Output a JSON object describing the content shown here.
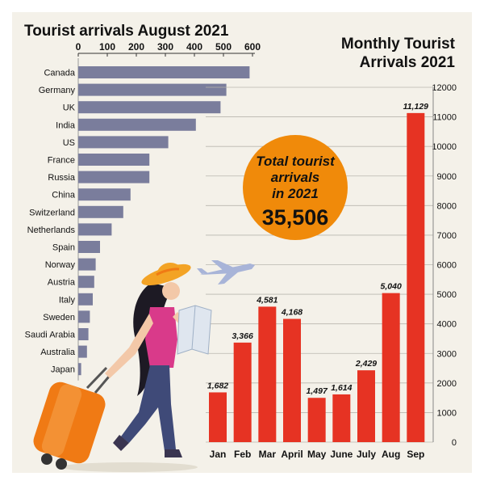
{
  "chart_data": [
    {
      "type": "bar",
      "orientation": "horizontal",
      "title": "Tourist arrivals August 2021",
      "categories": [
        "Canada",
        "Germany",
        "UK",
        "India",
        "US",
        "France",
        "Russia",
        "China",
        "Switzerland",
        "Netherlands",
        "Spain",
        "Norway",
        "Austria",
        "Italy",
        "Sweden",
        "Saudi Arabia",
        "Australia",
        "Japan"
      ],
      "values": [
        590,
        510,
        490,
        405,
        310,
        245,
        245,
        180,
        155,
        115,
        75,
        60,
        55,
        50,
        40,
        35,
        30,
        10
      ],
      "xticks": [
        "0",
        "100",
        "200",
        "300",
        "400",
        "500",
        "600"
      ],
      "xlim": [
        0,
        600
      ],
      "color": "#7a7d9c"
    },
    {
      "type": "bar",
      "title": "Monthly Tourist Arrivals 2021",
      "categories": [
        "Jan",
        "Feb",
        "Mar",
        "April",
        "May",
        "June",
        "July",
        "Aug",
        "Sep"
      ],
      "values": [
        1682,
        3366,
        4581,
        4168,
        1497,
        1614,
        2429,
        5040,
        11129
      ],
      "value_labels": [
        "1,682",
        "3,366",
        "4,581",
        "4,168",
        "1,497",
        "1,614",
        "2,429",
        "5,040",
        "11,129"
      ],
      "yticks": [
        "0",
        "1000",
        "2000",
        "3000",
        "4000",
        "5000",
        "6000",
        "7000",
        "8000",
        "9000",
        "10000",
        "11000",
        "12000"
      ],
      "ylim": [
        0,
        12000
      ],
      "grid": true,
      "color": "#e63323"
    }
  ],
  "callout": {
    "line1": "Total tourist",
    "line2": "arrivals",
    "line3": "in 2021",
    "total": "35,506",
    "color": "#f08a0a"
  },
  "colors": {
    "background": "#f4f1e9",
    "grid": "#b9b6ae"
  },
  "illustration": [
    "woman-traveler-icon",
    "suitcase-icon",
    "airplane-icon",
    "map-icon"
  ]
}
